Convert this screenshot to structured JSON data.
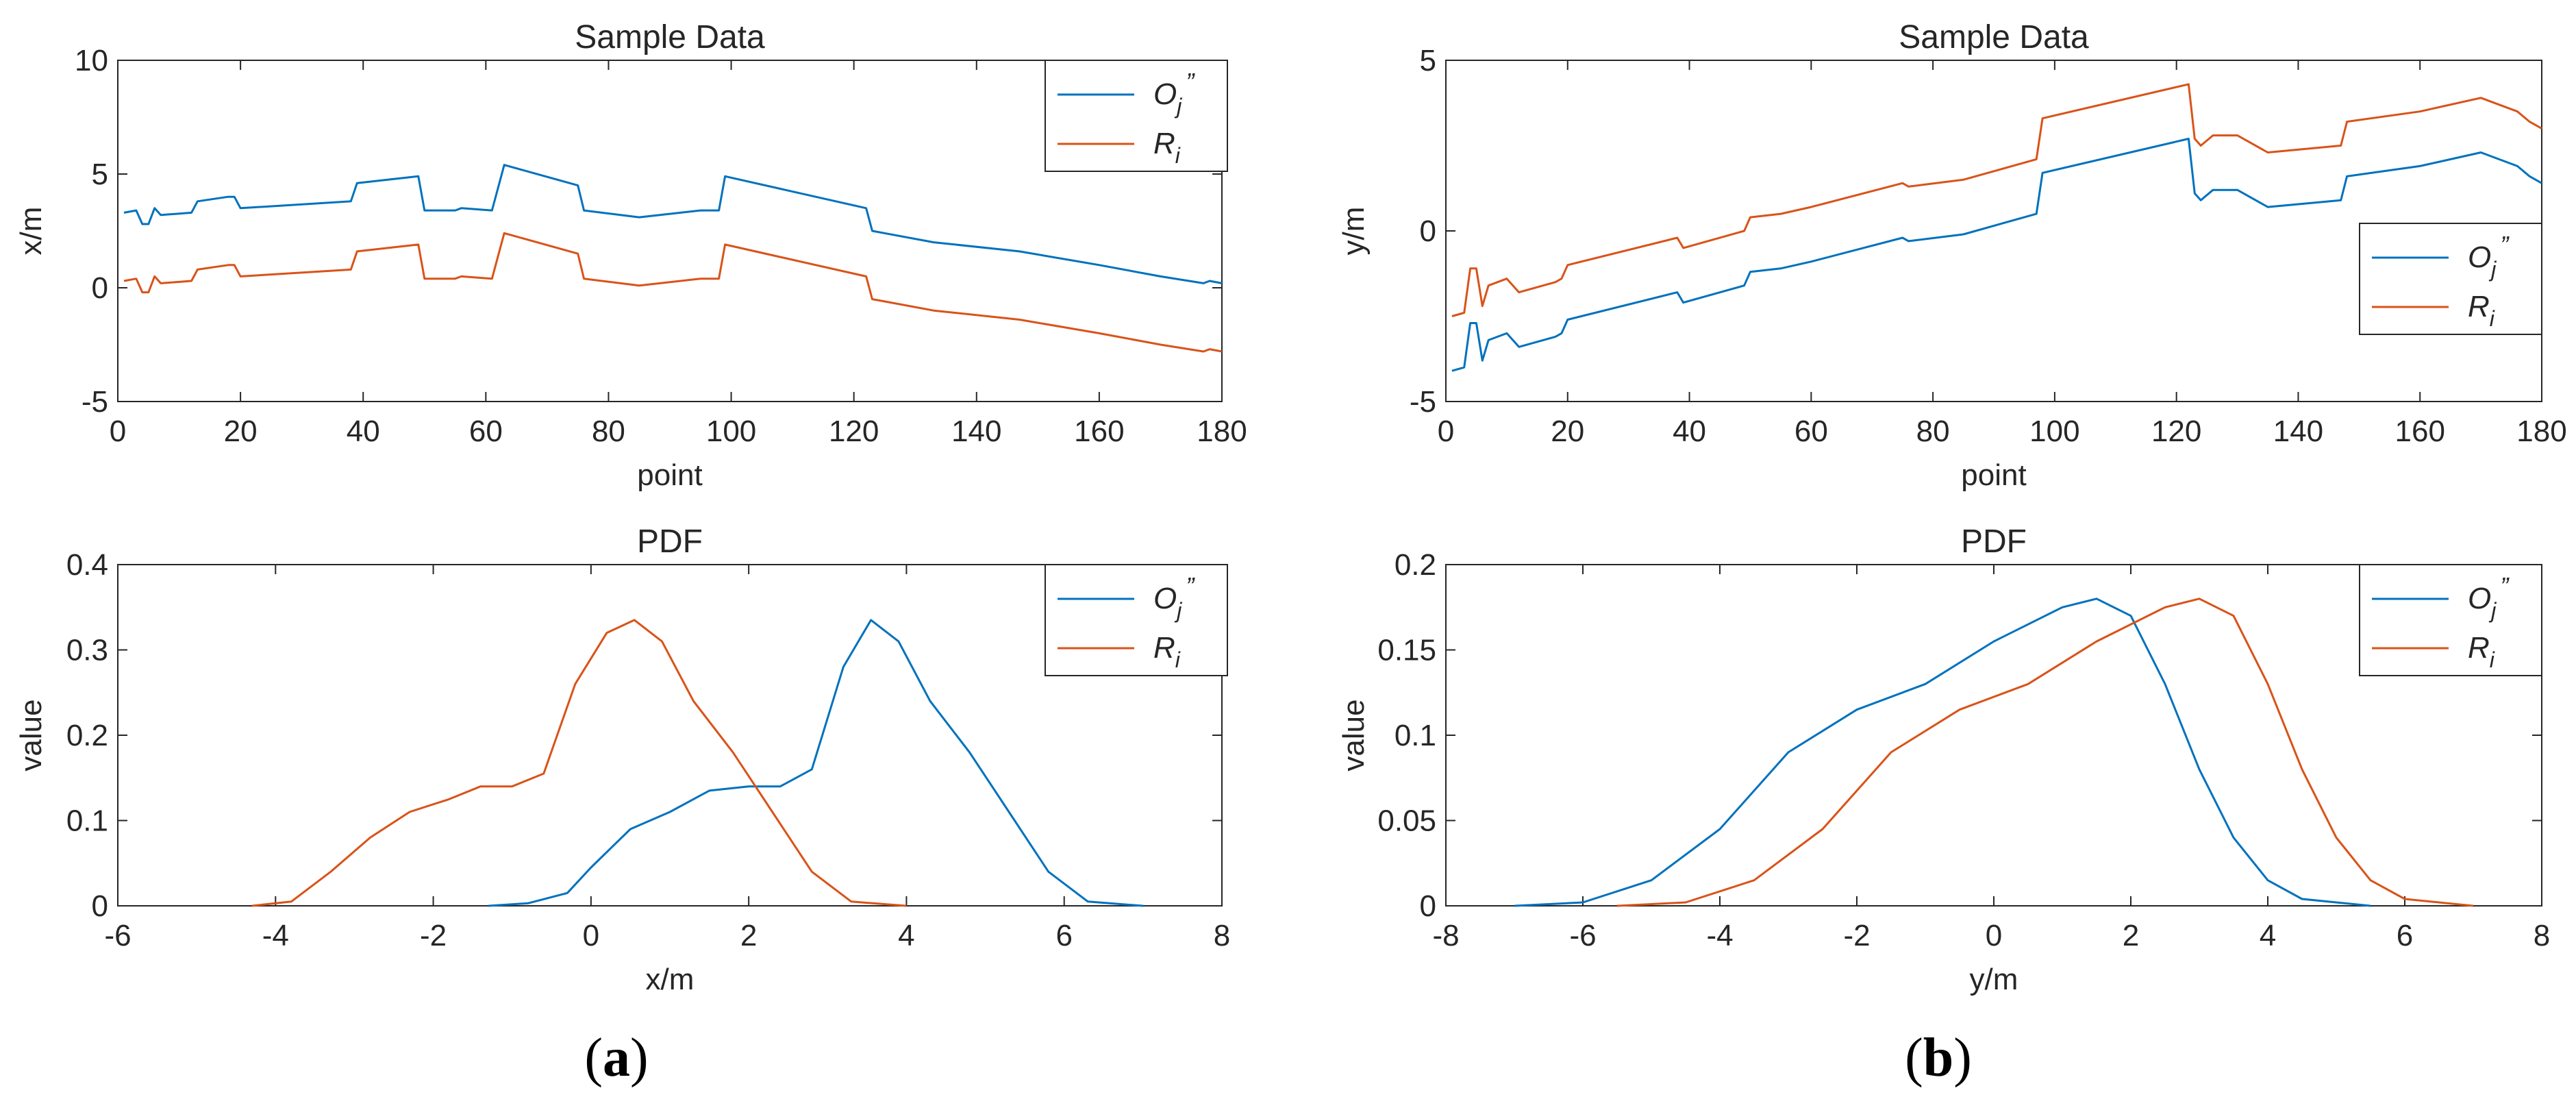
{
  "colors": {
    "series_1": "#0072BD",
    "series_2": "#D95319",
    "axis": "#262626"
  },
  "panel_labels": [
    {
      "open": "(",
      "letter": "a",
      "close": ")"
    },
    {
      "open": "(",
      "letter": "b",
      "close": ")"
    }
  ],
  "chart_data": [
    {
      "type": "line",
      "title": "Sample Data",
      "xlabel": "point",
      "ylabel": "x/m",
      "xlim": [
        0,
        180
      ],
      "ylim": [
        -5,
        10
      ],
      "xticks": [
        0,
        20,
        40,
        60,
        80,
        100,
        120,
        140,
        160,
        180
      ],
      "yticks": [
        -5,
        0,
        5,
        10
      ],
      "legend_position": "top-right",
      "series": [
        {
          "name": "O",
          "subscript": "j",
          "superscript": "”",
          "points": [
            [
              1,
              3.3
            ],
            [
              3,
              3.4
            ],
            [
              4,
              2.8
            ],
            [
              5,
              2.8
            ],
            [
              6,
              3.5
            ],
            [
              7,
              3.2
            ],
            [
              12,
              3.3
            ],
            [
              13,
              3.8
            ],
            [
              18,
              4.0
            ],
            [
              19,
              4.0
            ],
            [
              20,
              3.5
            ],
            [
              38,
              3.8
            ],
            [
              39,
              4.6
            ],
            [
              49,
              4.9
            ],
            [
              50,
              3.4
            ],
            [
              55,
              3.4
            ],
            [
              56,
              3.5
            ],
            [
              61,
              3.4
            ],
            [
              63,
              5.4
            ],
            [
              75,
              4.5
            ],
            [
              76,
              3.4
            ],
            [
              85,
              3.1
            ],
            [
              95,
              3.4
            ],
            [
              98,
              3.4
            ],
            [
              99,
              4.9
            ],
            [
              122,
              3.5
            ],
            [
              123,
              2.5
            ],
            [
              125,
              2.4
            ],
            [
              133,
              2.0
            ],
            [
              147,
              1.6
            ],
            [
              160,
              1.0
            ],
            [
              170,
              0.5
            ],
            [
              177,
              0.2
            ],
            [
              178,
              0.3
            ],
            [
              180,
              0.2
            ]
          ]
        },
        {
          "name": "R",
          "subscript": "i",
          "points": [
            [
              1,
              0.3
            ],
            [
              3,
              0.4
            ],
            [
              4,
              -0.2
            ],
            [
              5,
              -0.2
            ],
            [
              6,
              0.5
            ],
            [
              7,
              0.2
            ],
            [
              12,
              0.3
            ],
            [
              13,
              0.8
            ],
            [
              18,
              1.0
            ],
            [
              19,
              1.0
            ],
            [
              20,
              0.5
            ],
            [
              38,
              0.8
            ],
            [
              39,
              1.6
            ],
            [
              49,
              1.9
            ],
            [
              50,
              0.4
            ],
            [
              55,
              0.4
            ],
            [
              56,
              0.5
            ],
            [
              61,
              0.4
            ],
            [
              63,
              2.4
            ],
            [
              75,
              1.5
            ],
            [
              76,
              0.4
            ],
            [
              85,
              0.1
            ],
            [
              95,
              0.4
            ],
            [
              98,
              0.4
            ],
            [
              99,
              1.9
            ],
            [
              122,
              0.5
            ],
            [
              123,
              -0.5
            ],
            [
              125,
              -0.6
            ],
            [
              133,
              -1.0
            ],
            [
              147,
              -1.4
            ],
            [
              160,
              -2.0
            ],
            [
              170,
              -2.5
            ],
            [
              177,
              -2.8
            ],
            [
              178,
              -2.7
            ],
            [
              180,
              -2.8
            ]
          ]
        }
      ]
    },
    {
      "type": "line",
      "title": "Sample Data",
      "xlabel": "point",
      "ylabel": "y/m",
      "xlim": [
        0,
        180
      ],
      "ylim": [
        -5,
        5
      ],
      "xticks": [
        0,
        20,
        40,
        60,
        80,
        100,
        120,
        140,
        160,
        180
      ],
      "yticks": [
        -5,
        0,
        5
      ],
      "legend_position": "right",
      "series": [
        {
          "name": "O",
          "subscript": "j",
          "superscript": "”",
          "points": [
            [
              1,
              -4.1
            ],
            [
              3,
              -4.0
            ],
            [
              4,
              -2.7
            ],
            [
              5,
              -2.7
            ],
            [
              6,
              -3.8
            ],
            [
              7,
              -3.2
            ],
            [
              10,
              -3.0
            ],
            [
              12,
              -3.4
            ],
            [
              18,
              -3.1
            ],
            [
              19,
              -3.0
            ],
            [
              20,
              -2.6
            ],
            [
              38,
              -1.8
            ],
            [
              39,
              -2.1
            ],
            [
              49,
              -1.6
            ],
            [
              50,
              -1.2
            ],
            [
              55,
              -1.1
            ],
            [
              60,
              -0.9
            ],
            [
              75,
              -0.2
            ],
            [
              76,
              -0.3
            ],
            [
              85,
              -0.1
            ],
            [
              97,
              0.5
            ],
            [
              98,
              1.7
            ],
            [
              122,
              2.7
            ],
            [
              123,
              1.1
            ],
            [
              124,
              0.9
            ],
            [
              126,
              1.2
            ],
            [
              130,
              1.2
            ],
            [
              135,
              0.7
            ],
            [
              147,
              0.9
            ],
            [
              148,
              1.6
            ],
            [
              160,
              1.9
            ],
            [
              170,
              2.3
            ],
            [
              176,
              1.9
            ],
            [
              178,
              1.6
            ],
            [
              180,
              1.4
            ]
          ]
        },
        {
          "name": "R",
          "subscript": "i",
          "points": [
            [
              1,
              -2.5
            ],
            [
              3,
              -2.4
            ],
            [
              4,
              -1.1
            ],
            [
              5,
              -1.1
            ],
            [
              6,
              -2.2
            ],
            [
              7,
              -1.6
            ],
            [
              10,
              -1.4
            ],
            [
              12,
              -1.8
            ],
            [
              18,
              -1.5
            ],
            [
              19,
              -1.4
            ],
            [
              20,
              -1.0
            ],
            [
              38,
              -0.2
            ],
            [
              39,
              -0.5
            ],
            [
              49,
              0.0
            ],
            [
              50,
              0.4
            ],
            [
              55,
              0.5
            ],
            [
              60,
              0.7
            ],
            [
              75,
              1.4
            ],
            [
              76,
              1.3
            ],
            [
              85,
              1.5
            ],
            [
              97,
              2.1
            ],
            [
              98,
              3.3
            ],
            [
              122,
              4.3
            ],
            [
              123,
              2.7
            ],
            [
              124,
              2.5
            ],
            [
              126,
              2.8
            ],
            [
              130,
              2.8
            ],
            [
              135,
              2.3
            ],
            [
              147,
              2.5
            ],
            [
              148,
              3.2
            ],
            [
              160,
              3.5
            ],
            [
              170,
              3.9
            ],
            [
              176,
              3.5
            ],
            [
              178,
              3.2
            ],
            [
              180,
              3.0
            ]
          ]
        }
      ]
    },
    {
      "type": "line",
      "title": "PDF",
      "xlabel": "x/m",
      "ylabel": "value",
      "xlim": [
        -6,
        8
      ],
      "ylim": [
        0,
        0.4
      ],
      "xticks": [
        -6,
        -4,
        -2,
        0,
        2,
        4,
        6,
        8
      ],
      "yticks": [
        0,
        0.1,
        0.2,
        0.3,
        0.4
      ],
      "legend_position": "top-right",
      "series": [
        {
          "name": "O",
          "subscript": "j",
          "superscript": "”",
          "points": [
            [
              -1.3,
              0.0
            ],
            [
              -0.8,
              0.003
            ],
            [
              -0.3,
              0.015
            ],
            [
              0,
              0.045
            ],
            [
              0.5,
              0.09
            ],
            [
              1,
              0.11
            ],
            [
              1.5,
              0.135
            ],
            [
              2,
              0.14
            ],
            [
              2.4,
              0.14
            ],
            [
              2.8,
              0.16
            ],
            [
              3.2,
              0.28
            ],
            [
              3.55,
              0.335
            ],
            [
              3.9,
              0.31
            ],
            [
              4.3,
              0.24
            ],
            [
              4.8,
              0.18
            ],
            [
              5.3,
              0.11
            ],
            [
              5.8,
              0.04
            ],
            [
              6.3,
              0.005
            ],
            [
              7.0,
              0.0
            ]
          ]
        },
        {
          "name": "R",
          "subscript": "i",
          "points": [
            [
              -4.3,
              0.0
            ],
            [
              -3.8,
              0.005
            ],
            [
              -3.3,
              0.04
            ],
            [
              -2.8,
              0.08
            ],
            [
              -2.3,
              0.11
            ],
            [
              -1.8,
              0.125
            ],
            [
              -1.4,
              0.14
            ],
            [
              -1.0,
              0.14
            ],
            [
              -0.6,
              0.155
            ],
            [
              -0.2,
              0.26
            ],
            [
              0.2,
              0.32
            ],
            [
              0.55,
              0.335
            ],
            [
              0.9,
              0.31
            ],
            [
              1.3,
              0.24
            ],
            [
              1.8,
              0.18
            ],
            [
              2.3,
              0.11
            ],
            [
              2.8,
              0.04
            ],
            [
              3.3,
              0.005
            ],
            [
              4.0,
              0.0
            ]
          ]
        }
      ]
    },
    {
      "type": "line",
      "title": "PDF",
      "xlabel": "y/m",
      "ylabel": "value",
      "xlim": [
        -8,
        8
      ],
      "ylim": [
        0,
        0.2
      ],
      "xticks": [
        -8,
        -6,
        -4,
        -2,
        0,
        2,
        4,
        6,
        8
      ],
      "yticks": [
        0,
        0.05,
        0.1,
        0.15,
        0.2
      ],
      "legend_position": "top-right",
      "series": [
        {
          "name": "O",
          "subscript": "j",
          "superscript": "”",
          "points": [
            [
              -7,
              0.0
            ],
            [
              -6,
              0.002
            ],
            [
              -5,
              0.015
            ],
            [
              -4,
              0.045
            ],
            [
              -3,
              0.09
            ],
            [
              -2,
              0.115
            ],
            [
              -1,
              0.13
            ],
            [
              0,
              0.155
            ],
            [
              1,
              0.175
            ],
            [
              1.5,
              0.18
            ],
            [
              2,
              0.17
            ],
            [
              2.5,
              0.13
            ],
            [
              3,
              0.08
            ],
            [
              3.5,
              0.04
            ],
            [
              4,
              0.015
            ],
            [
              4.5,
              0.004
            ],
            [
              5.5,
              0.0
            ]
          ]
        },
        {
          "name": "R",
          "subscript": "i",
          "points": [
            [
              -5.5,
              0.0
            ],
            [
              -4.5,
              0.002
            ],
            [
              -3.5,
              0.015
            ],
            [
              -2.5,
              0.045
            ],
            [
              -1.5,
              0.09
            ],
            [
              -0.5,
              0.115
            ],
            [
              0.5,
              0.13
            ],
            [
              1.5,
              0.155
            ],
            [
              2.5,
              0.175
            ],
            [
              3,
              0.18
            ],
            [
              3.5,
              0.17
            ],
            [
              4,
              0.13
            ],
            [
              4.5,
              0.08
            ],
            [
              5,
              0.04
            ],
            [
              5.5,
              0.015
            ],
            [
              6,
              0.004
            ],
            [
              7,
              0.0
            ]
          ]
        }
      ]
    }
  ]
}
